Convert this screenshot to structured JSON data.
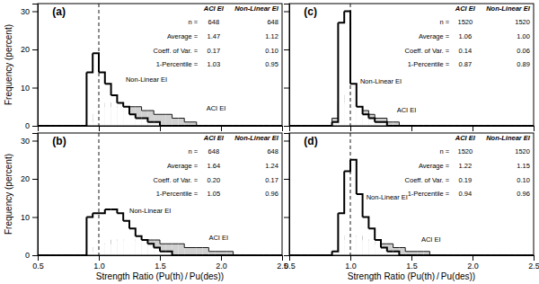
{
  "chart_data": [
    {
      "type": "histogram",
      "label": "(a)",
      "bins": [
        0.5,
        0.55,
        0.6,
        0.65,
        0.7,
        0.75,
        0.8,
        0.85,
        0.9,
        0.95,
        1,
        1.05,
        1.1,
        1.15,
        1.2,
        1.25,
        1.3,
        1.35,
        1.4,
        1.45,
        1.5,
        1.55,
        1.6,
        1.65,
        1.7,
        1.75,
        1.8,
        1.85,
        1.9,
        1.95,
        2,
        2.05,
        2.1,
        2.15,
        2.2,
        2.25,
        2.3,
        2.35,
        2.4,
        2.45,
        2.5
      ],
      "series": [
        {
          "name": "ACI EI",
          "color": "#d0d0d0",
          "values": [
            0,
            0,
            0,
            0,
            0,
            0,
            0,
            0,
            1,
            3,
            5,
            6,
            5,
            5,
            5,
            5,
            5,
            4,
            4,
            3,
            3,
            3,
            2,
            2,
            1,
            1,
            0,
            0,
            0,
            0,
            0,
            0,
            0,
            0,
            0,
            0,
            0,
            0,
            0,
            0
          ]
        },
        {
          "name": "Non-Linear EI",
          "color": "#ffffff",
          "values": [
            0,
            0,
            0,
            0,
            0,
            0,
            0,
            0,
            14,
            19,
            14,
            11,
            8,
            6,
            5,
            3,
            2,
            2,
            1,
            1,
            0,
            0,
            0,
            0,
            0,
            0,
            0,
            0,
            0,
            0,
            0,
            0,
            0,
            0,
            0,
            0,
            0,
            0,
            0,
            0
          ]
        }
      ],
      "annotations": [
        {
          "text": "Non-Linear EI",
          "x": 1.22,
          "y": 12
        },
        {
          "text": "ACI EI",
          "x": 1.88,
          "y": 4.5
        }
      ],
      "stats": [
        {
          "label": "n =",
          "values": [
            648,
            648
          ]
        },
        {
          "label": "Average =",
          "values": [
            1.47,
            1.12
          ]
        },
        {
          "label": "Coeff. of Var. =",
          "values": [
            0.17,
            0.1
          ],
          "value_labels": [
            "0.17",
            "0.10"
          ]
        },
        {
          "label": "1-Percentile =",
          "values": [
            1.03,
            0.95
          ]
        }
      ],
      "reference_x": 1.0,
      "ylabel": "Frequency (percent)",
      "xlim": [
        0.5,
        2.5
      ],
      "ylim": [
        0,
        32
      ],
      "xticks": [
        0.5,
        {
          "value": 1,
          "label": "1.0"
        },
        1.5,
        {
          "value": 2,
          "label": "2.0"
        },
        2.5
      ],
      "yticks": [
        0,
        10,
        20,
        30
      ],
      "tick_labels": "y",
      "grid": false
    },
    {
      "type": "histogram",
      "label": "(b)",
      "bins": [
        0.5,
        0.55,
        0.6,
        0.65,
        0.7,
        0.75,
        0.8,
        0.85,
        0.9,
        0.95,
        1,
        1.05,
        1.1,
        1.15,
        1.2,
        1.25,
        1.3,
        1.35,
        1.4,
        1.45,
        1.5,
        1.55,
        1.6,
        1.65,
        1.7,
        1.75,
        1.8,
        1.85,
        1.9,
        1.95,
        2,
        2.05,
        2.1,
        2.15,
        2.2,
        2.25,
        2.3,
        2.35,
        2.4,
        2.45,
        2.5
      ],
      "series": [
        {
          "name": "ACI EI",
          "color": "#d0d0d0",
          "values": [
            0,
            0,
            0,
            0,
            0,
            0,
            0,
            0,
            1,
            2,
            3,
            3,
            4,
            4,
            4,
            4,
            4,
            4,
            4,
            4,
            3,
            3,
            3,
            3,
            2,
            2,
            2,
            2,
            1,
            1,
            1,
            1,
            0,
            0,
            0,
            0,
            0,
            0,
            0,
            0
          ]
        },
        {
          "name": "Non-Linear EI",
          "color": "#ffffff",
          "values": [
            0,
            0,
            0,
            0,
            0,
            0,
            0,
            0,
            10,
            11,
            11,
            12,
            12,
            11,
            9,
            7,
            5,
            4,
            3,
            2,
            1,
            1,
            0,
            0,
            0,
            0,
            0,
            0,
            0,
            0,
            0,
            0,
            0,
            0,
            0,
            0,
            0,
            0,
            0,
            0
          ]
        }
      ],
      "annotations": [
        {
          "text": "Non-Linear EI",
          "x": 1.25,
          "y": 11.5
        },
        {
          "text": "ACI EI",
          "x": 1.9,
          "y": 4.5
        }
      ],
      "stats": [
        {
          "label": "n =",
          "values": [
            648,
            648
          ]
        },
        {
          "label": "Average =",
          "values": [
            1.64,
            1.24
          ]
        },
        {
          "label": "Coeff. of Var. =",
          "values": [
            0.2,
            0.17
          ],
          "value_labels": [
            "0.20",
            "0.17"
          ]
        },
        {
          "label": "1-Percentile =",
          "values": [
            1.05,
            0.96
          ]
        }
      ],
      "reference_x": 1.0,
      "xlabel": "Strength Ratio (Pu(th) / Pu(des))",
      "ylabel": "Frequency (percent)",
      "xlim": [
        0.5,
        2.5
      ],
      "ylim": [
        0,
        32
      ],
      "xticks": [
        0.5,
        {
          "value": 1,
          "label": "1.0"
        },
        1.5,
        {
          "value": 2,
          "label": "2.0"
        },
        2.5
      ],
      "yticks": [
        0,
        10,
        20,
        30
      ],
      "tick_labels": true,
      "grid": false
    },
    {
      "type": "histogram",
      "label": "(c)",
      "bins": [
        0.5,
        0.55,
        0.6,
        0.65,
        0.7,
        0.75,
        0.8,
        0.85,
        0.9,
        0.95,
        1,
        1.05,
        1.1,
        1.15,
        1.2,
        1.25,
        1.3,
        1.35,
        1.4,
        1.45,
        1.5,
        1.55,
        1.6,
        1.65,
        1.7,
        1.75,
        1.8,
        1.85,
        1.9,
        1.95,
        2,
        2.05,
        2.1,
        2.15,
        2.2,
        2.25,
        2.3,
        2.35,
        2.4,
        2.45,
        2.5
      ],
      "series": [
        {
          "name": "ACI EI",
          "color": "#d0d0d0",
          "values": [
            0,
            0,
            0,
            0,
            0,
            0,
            0,
            2,
            6,
            8,
            6,
            5,
            4,
            3,
            2,
            2,
            1,
            1,
            0,
            0,
            0,
            0,
            0,
            0,
            0,
            0,
            0,
            0,
            0,
            0,
            0,
            0,
            0,
            0,
            0,
            0,
            0,
            0,
            0,
            0
          ]
        },
        {
          "name": "Non-Linear EI",
          "color": "#ffffff",
          "values": [
            0,
            0,
            0,
            0,
            0,
            0,
            0,
            1,
            27,
            30,
            11,
            5,
            3,
            2,
            1,
            1,
            0,
            0,
            0,
            0,
            0,
            0,
            0,
            0,
            0,
            0,
            0,
            0,
            0,
            0,
            0,
            0,
            0,
            0,
            0,
            0,
            0,
            0,
            0,
            0
          ]
        }
      ],
      "annotations": [
        {
          "text": "Non-Linear EI",
          "x": 1.08,
          "y": 11.5
        },
        {
          "text": "ACI EI",
          "x": 1.38,
          "y": 4
        }
      ],
      "stats": [
        {
          "label": "n =",
          "values": [
            1520,
            1520
          ]
        },
        {
          "label": "Average =",
          "values": [
            1.06,
            1
          ],
          "value_labels": [
            "1.06",
            "1.00"
          ]
        },
        {
          "label": "Coeff. of Var. =",
          "values": [
            0.14,
            0.06
          ]
        },
        {
          "label": "1-Percentile =",
          "values": [
            0.87,
            0.89
          ]
        }
      ],
      "reference_x": 1.0,
      "xlim": [
        0.5,
        2.5
      ],
      "ylim": [
        0,
        32
      ],
      "xticks": [
        0.5,
        {
          "value": 1,
          "label": "1.0"
        },
        1.5,
        {
          "value": 2,
          "label": "2.0"
        },
        2.5
      ],
      "yticks": [
        0,
        10,
        20,
        30
      ],
      "tick_labels": false,
      "grid": false
    },
    {
      "type": "histogram",
      "label": "(d)",
      "bins": [
        0.5,
        0.55,
        0.6,
        0.65,
        0.7,
        0.75,
        0.8,
        0.85,
        0.9,
        0.95,
        1,
        1.05,
        1.1,
        1.15,
        1.2,
        1.25,
        1.3,
        1.35,
        1.4,
        1.45,
        1.5,
        1.55,
        1.6,
        1.65,
        1.7,
        1.75,
        1.8,
        1.85,
        1.9,
        1.95,
        2,
        2.05,
        2.1,
        2.15,
        2.2,
        2.25,
        2.3,
        2.35,
        2.4,
        2.45,
        2.5
      ],
      "series": [
        {
          "name": "ACI EI",
          "color": "#d0d0d0",
          "values": [
            0,
            0,
            0,
            0,
            0,
            0,
            0,
            1,
            4,
            5,
            5,
            5,
            4,
            4,
            3,
            3,
            3,
            2,
            2,
            1,
            1,
            1,
            1,
            0,
            0,
            0,
            0,
            0,
            0,
            0,
            0,
            0,
            0,
            0,
            0,
            0,
            0,
            0,
            0,
            0
          ]
        },
        {
          "name": "Non-Linear EI",
          "color": "#ffffff",
          "values": [
            0,
            0,
            0,
            0,
            0,
            0,
            0,
            1,
            11,
            22,
            25,
            16,
            10,
            7,
            4,
            2,
            1,
            1,
            0,
            0,
            0,
            0,
            0,
            0,
            0,
            0,
            0,
            0,
            0,
            0,
            0,
            0,
            0,
            0,
            0,
            0,
            0,
            0,
            0,
            0
          ]
        }
      ],
      "annotations": [
        {
          "text": "Non-Linear EI",
          "x": 1.13,
          "y": 15
        },
        {
          "text": "ACI EI",
          "x": 1.58,
          "y": 4
        }
      ],
      "stats": [
        {
          "label": "n =",
          "values": [
            1520,
            1520
          ]
        },
        {
          "label": "Average =",
          "values": [
            1.22,
            1.15
          ]
        },
        {
          "label": "Coeff. of Var. =",
          "values": [
            0.19,
            0.1
          ],
          "value_labels": [
            "0.19",
            "0.10"
          ]
        },
        {
          "label": "1-Percentile =",
          "values": [
            0.94,
            0.96
          ]
        }
      ],
      "reference_x": 1.0,
      "xlabel": "Strength Ratio (Pu(th) / Pu(des))",
      "xlim": [
        0.5,
        2.5
      ],
      "ylim": [
        0,
        32
      ],
      "xticks": [
        0.5,
        {
          "value": 1,
          "label": "1.0"
        },
        1.5,
        {
          "value": 2,
          "label": "2.0"
        },
        2.5
      ],
      "yticks": [
        0,
        10,
        20,
        30
      ],
      "tick_labels": "x",
      "grid": false
    }
  ]
}
